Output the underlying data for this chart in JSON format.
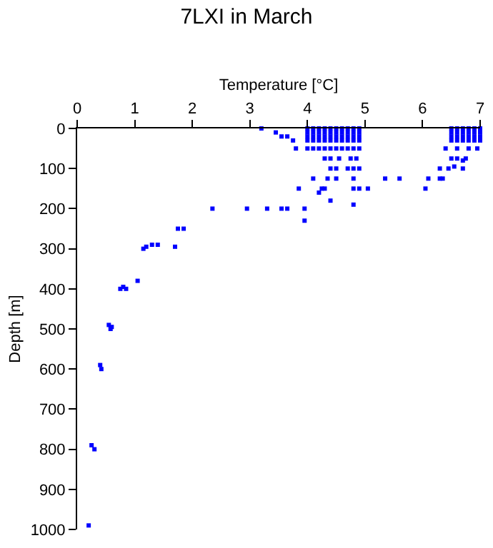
{
  "chart_data": {
    "type": "scatter",
    "title": "7LXI in March",
    "xlabel": "Temperature [°C]",
    "ylabel": "Depth [m]",
    "xlim": [
      0,
      7
    ],
    "xticks": [
      0,
      1,
      2,
      3,
      4,
      5,
      6,
      7
    ],
    "ylim": [
      1000,
      0
    ],
    "yticks": [
      0,
      100,
      200,
      300,
      400,
      500,
      600,
      700,
      800,
      900,
      1000
    ],
    "legend": false,
    "marker": "square",
    "series": [
      {
        "color": "#0000ff",
        "x": [
          0.2,
          0.25,
          0.3,
          0.4,
          0.42,
          0.55,
          0.58,
          0.6,
          0.75,
          0.8,
          0.85,
          1.05,
          1.15,
          1.2,
          1.3,
          1.4,
          1.7,
          1.75,
          1.85,
          2.35,
          2.95,
          3.3,
          3.55,
          3.65,
          3.95,
          3.95,
          4.4,
          4.8,
          3.2,
          3.45,
          3.55,
          3.65,
          3.75,
          3.8,
          3.85,
          4.1,
          4.2,
          4.25,
          4.3,
          4.35,
          4.5,
          4.8,
          4.8,
          4.9,
          5.05,
          5.35,
          5.6,
          6.05,
          6.1,
          6.3,
          6.35,
          4.3,
          4.4,
          4.55,
          4.75,
          4.85,
          4.4,
          4.5,
          4.7,
          4.8,
          4.9,
          6.3,
          6.45,
          6.55,
          6.7,
          6.5,
          6.6,
          6.7,
          6.75,
          6.4,
          6.6,
          6.8,
          6.95,
          4.0,
          4.1,
          4.2,
          4.3,
          4.4,
          4.5,
          4.6,
          4.7,
          4.8,
          4.9,
          4.0,
          4.1,
          4.2,
          4.3,
          4.4,
          4.5,
          4.6,
          4.7,
          4.8,
          4.9,
          4.0,
          4.1,
          4.2,
          4.3,
          4.4,
          4.5,
          4.6,
          4.7,
          4.8,
          4.9,
          4.0,
          4.1,
          4.2,
          4.3,
          4.4,
          4.5,
          4.6,
          4.7,
          4.8,
          4.9,
          4.0,
          4.1,
          4.2,
          4.3,
          4.4,
          4.5,
          4.6,
          4.7,
          4.8,
          4.9,
          6.5,
          6.6,
          6.7,
          6.8,
          6.9,
          7.0,
          6.5,
          6.6,
          6.7,
          6.8,
          6.9,
          7.0,
          6.5,
          6.6,
          6.7,
          6.8,
          6.9,
          7.0,
          6.5,
          6.6,
          6.7,
          6.8,
          6.9,
          7.0
        ],
        "values": [
          990,
          790,
          800,
          590,
          600,
          490,
          500,
          495,
          400,
          395,
          400,
          380,
          300,
          295,
          290,
          290,
          295,
          250,
          250,
          200,
          200,
          200,
          200,
          200,
          200,
          230,
          180,
          190,
          0,
          10,
          20,
          20,
          30,
          50,
          150,
          125,
          160,
          150,
          150,
          125,
          125,
          125,
          150,
          150,
          150,
          125,
          125,
          150,
          125,
          125,
          125,
          75,
          75,
          75,
          75,
          75,
          100,
          100,
          100,
          100,
          100,
          100,
          100,
          95,
          100,
          75,
          75,
          80,
          75,
          50,
          50,
          50,
          50,
          0,
          0,
          0,
          0,
          0,
          0,
          0,
          0,
          0,
          0,
          10,
          10,
          10,
          10,
          10,
          10,
          10,
          10,
          10,
          10,
          20,
          20,
          20,
          20,
          20,
          20,
          20,
          20,
          20,
          20,
          30,
          30,
          30,
          30,
          30,
          30,
          30,
          30,
          30,
          30,
          50,
          50,
          50,
          50,
          50,
          50,
          50,
          50,
          50,
          50,
          0,
          0,
          0,
          0,
          0,
          0,
          10,
          10,
          10,
          10,
          10,
          10,
          20,
          20,
          20,
          20,
          20,
          20,
          30,
          30,
          30,
          30,
          30,
          30
        ]
      }
    ]
  }
}
